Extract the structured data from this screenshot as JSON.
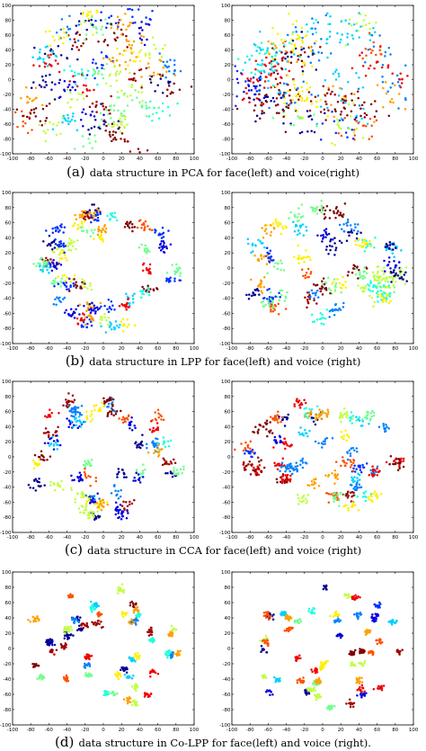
{
  "figure": {
    "captions": [
      {
        "letter": "(a)",
        "text": "data structure in PCA for face(left) and voice(right)"
      },
      {
        "letter": "(b)",
        "text": "data structure in LPP for face(left) and voice (right)"
      },
      {
        "letter": "(c)",
        "text": "data structure in CCA for face(left) and voice (right)"
      },
      {
        "letter": "(d)",
        "text": "data structure in Co-LPP for face(left) and voice (right)."
      }
    ]
  },
  "chart_data": [
    {
      "type": "scatter",
      "panel": "a-face",
      "xlim": [
        -100,
        100
      ],
      "ylim": [
        -100,
        100
      ],
      "xticks": [
        "-100",
        "-80",
        "-60",
        "-40",
        "-20",
        "0",
        "20",
        "40",
        "60",
        "80",
        "100"
      ],
      "yticks": [
        "100",
        "80",
        "60",
        "40",
        "20",
        "0",
        "-20",
        "-40",
        "-60",
        "-80",
        "-100"
      ],
      "grid": false,
      "ntick_y_top": 80,
      "spread": 8,
      "clusters": 48,
      "clusters_xy": [
        [
          -85,
          -55
        ],
        [
          -75,
          -45
        ],
        [
          -78,
          -25
        ],
        [
          -65,
          -5
        ],
        [
          -60,
          20
        ],
        [
          -48,
          40
        ],
        [
          -40,
          65
        ],
        [
          -30,
          55
        ],
        [
          -20,
          75
        ],
        [
          -15,
          85
        ],
        [
          -5,
          70
        ],
        [
          5,
          80
        ],
        [
          15,
          60
        ],
        [
          25,
          70
        ],
        [
          30,
          50
        ],
        [
          45,
          65
        ],
        [
          40,
          85
        ],
        [
          55,
          40
        ],
        [
          55,
          10
        ],
        [
          65,
          -5
        ],
        [
          75,
          20
        ],
        [
          80,
          -10
        ],
        [
          60,
          -40
        ],
        [
          45,
          -30
        ],
        [
          30,
          -15
        ],
        [
          20,
          -35
        ],
        [
          10,
          -50
        ],
        [
          -5,
          -35
        ],
        [
          -20,
          -50
        ],
        [
          -30,
          -30
        ],
        [
          -40,
          -55
        ],
        [
          -55,
          -65
        ],
        [
          -15,
          -85
        ],
        [
          -5,
          -65
        ],
        [
          10,
          -75
        ],
        [
          20,
          -60
        ],
        [
          35,
          -90
        ],
        [
          -10,
          10
        ],
        [
          0,
          25
        ],
        [
          10,
          5
        ],
        [
          20,
          25
        ],
        [
          -30,
          10
        ],
        [
          -40,
          -10
        ],
        [
          -20,
          -10
        ],
        [
          40,
          5
        ],
        [
          30,
          30
        ],
        [
          -50,
          60
        ],
        [
          -65,
          35
        ]
      ]
    },
    {
      "type": "scatter",
      "panel": "a-voice",
      "xlim": [
        -100,
        100
      ],
      "ylim": [
        -100,
        100
      ],
      "xticks": [
        "-100",
        "-80",
        "-60",
        "-40",
        "-20",
        "0",
        "20",
        "40",
        "60",
        "80",
        "100"
      ],
      "yticks": [
        "100",
        "80",
        "60",
        "40",
        "20",
        "0",
        "-20",
        "-40",
        "-60",
        "-80",
        "-100"
      ],
      "grid": false,
      "spread": 12,
      "clusters": 48
    },
    {
      "type": "scatter",
      "panel": "b-face",
      "xlim": [
        -100,
        100
      ],
      "ylim": [
        -100,
        100
      ],
      "xticks": [
        "-100",
        "-80",
        "-60",
        "-40",
        "-20",
        "0",
        "20",
        "40",
        "60",
        "80",
        "100"
      ],
      "yticks": [
        "100",
        "80",
        "60",
        "40",
        "20",
        "0",
        "-20",
        "-40",
        "-60",
        "-80",
        "-100"
      ],
      "grid": false,
      "spread": 4,
      "clusters": 48
    },
    {
      "type": "scatter",
      "panel": "b-voice",
      "xlim": [
        -100,
        100
      ],
      "ylim": [
        -100,
        100
      ],
      "xticks": [
        "-100",
        "-80",
        "-60",
        "-40",
        "-20",
        "0",
        "20",
        "40",
        "60",
        "80",
        "100"
      ],
      "yticks": [
        "100",
        "80",
        "60",
        "40",
        "20",
        "0",
        "-20",
        "-40",
        "-60",
        "-80",
        "-100"
      ],
      "grid": false,
      "spread": 5,
      "clusters": 48
    },
    {
      "type": "scatter",
      "panel": "c-face",
      "xlim": [
        -100,
        100
      ],
      "ylim": [
        -100,
        100
      ],
      "xticks": [
        "-100",
        "-80",
        "-60",
        "-40",
        "-20",
        "0",
        "20",
        "40",
        "60",
        "80",
        "100"
      ],
      "yticks": [
        "100",
        "80",
        "60",
        "40",
        "20",
        "0",
        "-20",
        "-40",
        "-60",
        "-80",
        "-100"
      ],
      "grid": false,
      "spread": 4,
      "clusters": 48
    },
    {
      "type": "scatter",
      "panel": "c-voice",
      "xlim": [
        -100,
        100
      ],
      "ylim": [
        -100,
        100
      ],
      "xticks": [
        "-100",
        "-80",
        "-60",
        "-40",
        "-20",
        "0",
        "20",
        "40",
        "60",
        "80",
        "100"
      ],
      "yticks": [
        "100",
        "80",
        "60",
        "40",
        "20",
        "0",
        "-20",
        "-40",
        "-60",
        "-80",
        "-100"
      ],
      "grid": false,
      "spread": 4,
      "clusters": 48
    },
    {
      "type": "scatter",
      "panel": "d-face",
      "xlim": [
        -100,
        100
      ],
      "ylim": [
        -100,
        100
      ],
      "xticks": [
        "-100",
        "-80",
        "-60",
        "-40",
        "-20",
        "0",
        "20",
        "40",
        "60",
        "80",
        "100"
      ],
      "yticks": [
        "100",
        "80",
        "60",
        "40",
        "20",
        "0",
        "-20",
        "-40",
        "-60",
        "-80",
        "-100"
      ],
      "grid": false,
      "spread": 2,
      "clusters": 48
    },
    {
      "type": "scatter",
      "panel": "d-voice",
      "xlim": [
        -100,
        100
      ],
      "ylim": [
        -100,
        100
      ],
      "xticks": [
        "-100",
        "-80",
        "-60",
        "-40",
        "-20",
        "0",
        "20",
        "40",
        "60",
        "80",
        "100"
      ],
      "yticks": [
        "100",
        "80",
        "60",
        "40",
        "20",
        "0",
        "-20",
        "-40",
        "-60",
        "-80",
        "-100"
      ],
      "grid": false,
      "spread": 2,
      "clusters": 48
    }
  ],
  "colormap": [
    "#00008f",
    "#0000df",
    "#0030ff",
    "#0080ff",
    "#00d0ff",
    "#20ffdf",
    "#70ff8f",
    "#bfff40",
    "#ffef00",
    "#ffa000",
    "#ff5000",
    "#ef0000",
    "#9f0000",
    "#800000"
  ]
}
